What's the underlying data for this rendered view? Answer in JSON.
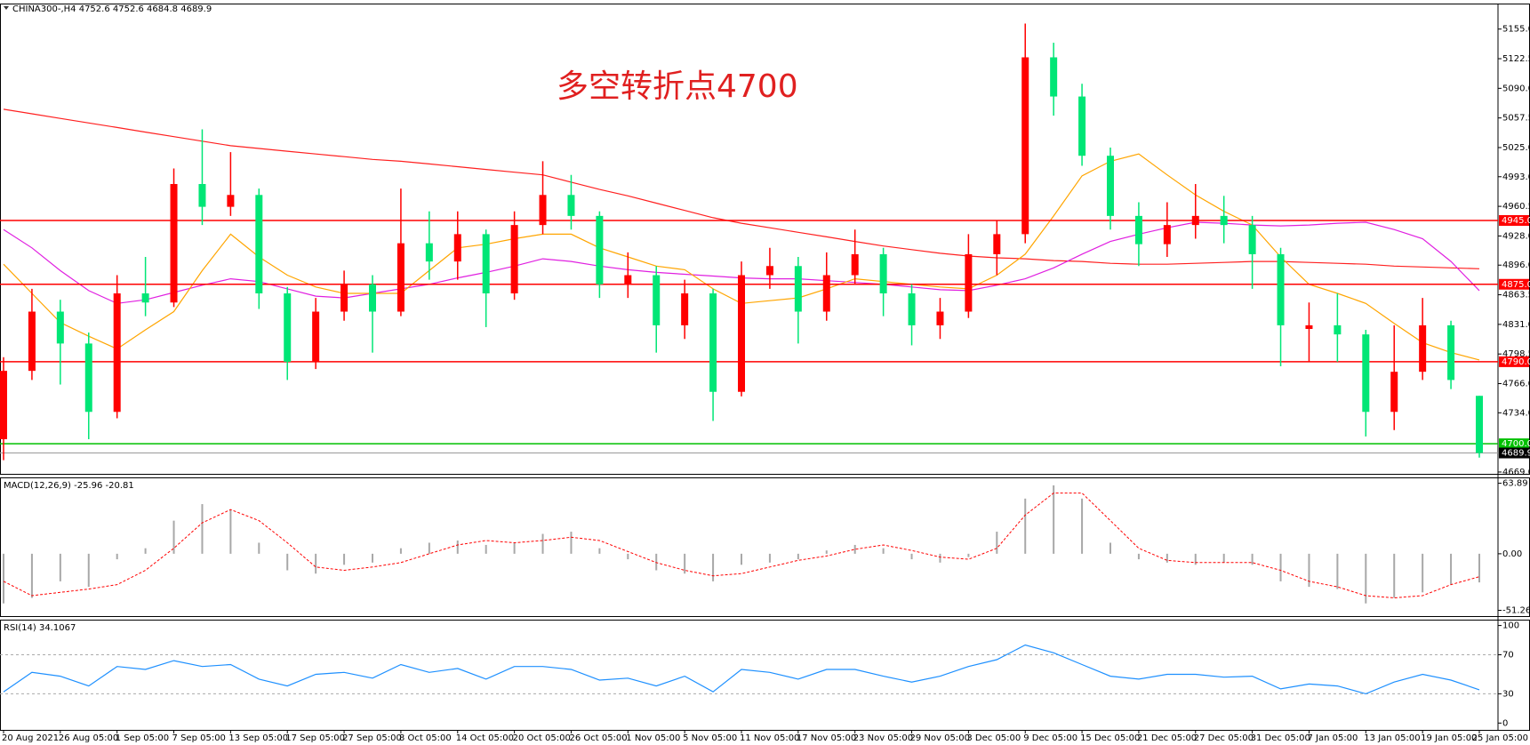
{
  "chart_data": [
    {
      "type": "candlestick",
      "title": "CHINA300-,H4  4752.6 4752.6 4684.8 4689.9",
      "annotation": "多空转折点4700",
      "categories": [
        "20 Aug 2021",
        null,
        "26 Aug 05:00",
        null,
        "1 Sep 05:00",
        null,
        "7 Sep 05:00",
        null,
        "13 Sep 05:00",
        null,
        "17 Sep 05:00",
        null,
        "27 Sep 05:00",
        null,
        "8 Oct 05:00",
        null,
        "14 Oct 05:00",
        null,
        "20 Oct 05:00",
        null,
        "26 Oct 05:00",
        null,
        "1 Nov 05:00",
        null,
        "5 Nov 05:00",
        null,
        "11 Nov 05:00",
        null,
        "17 Nov 05:00",
        null,
        "23 Nov 05:00",
        null,
        "29 Nov 05:00",
        null,
        "3 Dec 05:00",
        null,
        "9 Dec 05:00",
        null,
        "15 Dec 05:00",
        null,
        "21 Dec 05:00",
        null,
        "27 Dec 05:00",
        null,
        "31 Dec 05:00",
        null,
        "7 Jan 05:00",
        null,
        "13 Jan 05:00",
        null,
        "19 Jan 05:00",
        null,
        "25 Jan 05:00"
      ],
      "open": [
        4705,
        4780,
        4845,
        4810,
        4735,
        4865,
        4855,
        4985,
        4960,
        4973,
        4865,
        4790,
        4845,
        4875,
        4845,
        4920,
        4900,
        4930,
        4865,
        4940,
        4973,
        4950,
        4875,
        4885,
        4830,
        4865,
        4757,
        4885,
        4895,
        4845,
        4885,
        4908,
        4865,
        4830,
        4845,
        4908,
        4930,
        5124,
        5081,
        5016,
        4950,
        4919,
        4940,
        4950,
        4940,
        4908,
        4826,
        4830,
        4820,
        4735,
        4779,
        4830,
        4752.6
      ],
      "high": [
        4795,
        4870,
        4858,
        4822,
        4885,
        4905,
        5002,
        5045,
        5020,
        4980,
        4872,
        4860,
        4890,
        4885,
        4980,
        4955,
        4955,
        4935,
        4955,
        5010,
        4995,
        4955,
        4910,
        4895,
        4880,
        4870,
        4900,
        4915,
        4905,
        4910,
        4935,
        4915,
        4875,
        4860,
        4930,
        4945,
        5161,
        5140,
        5095,
        5025,
        4965,
        4965,
        4985,
        4972,
        4950,
        4915,
        4855,
        4865,
        4825,
        4830,
        4860,
        4835,
        4752.6
      ],
      "low": [
        4682,
        4770,
        4765,
        4705,
        4728,
        4840,
        4850,
        4940,
        4950,
        4848,
        4770,
        4782,
        4835,
        4800,
        4840,
        4880,
        4880,
        4828,
        4858,
        4930,
        4935,
        4860,
        4860,
        4800,
        4815,
        4725,
        4752,
        4870,
        4810,
        4835,
        4875,
        4840,
        4808,
        4815,
        4838,
        4885,
        4920,
        5060,
        5005,
        4935,
        4895,
        4905,
        4925,
        4920,
        4870,
        4785,
        4790,
        4790,
        4708,
        4715,
        4770,
        4760,
        4684.8
      ],
      "close": [
        4780,
        4845,
        4810,
        4735,
        4865,
        4855,
        4985,
        4960,
        4973,
        4865,
        4790,
        4845,
        4875,
        4845,
        4920,
        4900,
        4930,
        4865,
        4940,
        4973,
        4950,
        4875,
        4885,
        4830,
        4865,
        4757,
        4885,
        4895,
        4845,
        4885,
        4908,
        4865,
        4830,
        4845,
        4908,
        4930,
        5124,
        5081,
        5016,
        4950,
        4919,
        4940,
        4950,
        4940,
        4908,
        4830,
        4830,
        4820,
        4735,
        4779,
        4830,
        4770,
        4689.9
      ],
      "up_color": "#ff0000",
      "down_color": "#00e676",
      "lines": [
        {
          "color": "#ff2020",
          "values": [
            5067,
            5062,
            5057,
            5052,
            5047,
            5042,
            5037,
            5032,
            5027,
            5024,
            5021,
            5018,
            5015,
            5012,
            5010,
            5007,
            5004,
            5001,
            4998,
            4995,
            4987,
            4979,
            4972,
            4964,
            4956,
            4948,
            4942,
            4937,
            4932,
            4927,
            4922,
            4917,
            4913,
            4909,
            4906,
            4904,
            4903,
            4901,
            4900,
            4898,
            4897,
            4897,
            4898,
            4899,
            4900,
            4900,
            4899,
            4898,
            4897,
            4895,
            4894,
            4893,
            4892
          ]
        },
        {
          "color": "#e020e0",
          "values": [
            4935,
            4915,
            4890,
            4868,
            4854,
            4858,
            4866,
            4874,
            4881,
            4878,
            4870,
            4862,
            4860,
            4865,
            4870,
            4875,
            4882,
            4888,
            4895,
            4903,
            4900,
            4895,
            4891,
            4888,
            4886,
            4884,
            4882,
            4881,
            4881,
            4879,
            4877,
            4875,
            4872,
            4869,
            4868,
            4874,
            4881,
            4893,
            4908,
            4922,
            4930,
            4937,
            4943,
            4942,
            4940,
            4939,
            4940,
            4942,
            4943,
            4935,
            4925,
            4900,
            4868
          ]
        },
        {
          "color": "#ffa500",
          "values": [
            4897,
            4865,
            4833,
            4818,
            4804,
            4825,
            4845,
            4890,
            4930,
            4905,
            4885,
            4872,
            4865,
            4865,
            4865,
            4890,
            4915,
            4919,
            4925,
            4930,
            4930,
            4915,
            4905,
            4895,
            4891,
            4870,
            4854,
            4857,
            4860,
            4870,
            4881,
            4878,
            4875,
            4872,
            4870,
            4885,
            4908,
            4950,
            4994,
            5010,
            5018,
            4995,
            4973,
            4955,
            4940,
            4905,
            4875,
            4865,
            4854,
            4832,
            4811,
            4800,
            4792
          ]
        }
      ],
      "levels": [
        {
          "value": 4945,
          "label": "4945.0",
          "color": "#ff0000"
        },
        {
          "value": 4875,
          "label": "4875.0",
          "color": "#ff0000"
        },
        {
          "value": 4790,
          "label": "4790.0",
          "color": "#ff0000"
        },
        {
          "value": 4700,
          "label": "4700.0",
          "color": "#00c000"
        },
        {
          "value": 4689.9,
          "label": "4689.9",
          "color": "#000000"
        }
      ],
      "ylim": [
        4667,
        5183
      ],
      "yticks": [
        {
          "value": 5155,
          "label": "5155.0"
        },
        5122.5,
        {
          "value": 5090,
          "label": "5090.0"
        },
        5057.5,
        {
          "value": 5025,
          "label": "5025.0"
        },
        {
          "value": 4993,
          "label": "4993.0"
        },
        4960.5,
        {
          "value": 4928,
          "label": "4928.0"
        },
        {
          "value": 4896,
          "label": "4896.0"
        },
        4863.5,
        {
          "value": 4831,
          "label": "4831.0"
        },
        4798.5,
        {
          "value": 4766,
          "label": "4766.0"
        },
        {
          "value": 4734,
          "label": "4734.0"
        },
        {
          "value": 4669,
          "label": "4669.0"
        }
      ]
    },
    {
      "type": "macd",
      "title": "MACD(12,26,9) -25.96 -20.81",
      "histogram": [
        -45,
        -40,
        -25,
        -30,
        -5,
        5,
        30,
        45,
        40,
        10,
        -15,
        -18,
        -10,
        -8,
        5,
        10,
        12,
        8,
        10,
        18,
        20,
        5,
        -5,
        -15,
        -18,
        -25,
        -10,
        -8,
        -5,
        3,
        8,
        5,
        -5,
        -8,
        -3,
        20,
        50,
        62,
        50,
        10,
        -5,
        -8,
        -10,
        -8,
        -10,
        -25,
        -30,
        -32,
        -45,
        -40,
        -35,
        -28,
        -25.96
      ],
      "signal": [
        -25,
        -38,
        -35,
        -32,
        -28,
        -15,
        5,
        28,
        40,
        30,
        10,
        -12,
        -15,
        -12,
        -8,
        0,
        8,
        12,
        10,
        12,
        15,
        12,
        2,
        -8,
        -15,
        -20,
        -18,
        -12,
        -6,
        -2,
        4,
        8,
        3,
        -3,
        -5,
        5,
        35,
        55,
        55,
        30,
        5,
        -6,
        -8,
        -8,
        -8,
        -15,
        -25,
        -30,
        -38,
        -40,
        -38,
        -28,
        -20.81
      ],
      "hist_color": "#a8a8a8",
      "signal_color": "#ff0000",
      "ylim": [
        -56.5,
        69.2
      ],
      "yticks": [
        63.89,
        {
          "value": 0,
          "label": "0.00"
        },
        -51.26
      ]
    },
    {
      "type": "line",
      "title": "RSI(14) 34.1067",
      "values": [
        32,
        52,
        48,
        38,
        58,
        55,
        64,
        58,
        60,
        45,
        38,
        50,
        52,
        46,
        60,
        52,
        56,
        45,
        58,
        58,
        55,
        44,
        46,
        38,
        48,
        32,
        55,
        52,
        45,
        55,
        55,
        48,
        42,
        48,
        58,
        65,
        80,
        72,
        60,
        48,
        45,
        50,
        50,
        47,
        48,
        35,
        40,
        38,
        30,
        42,
        50,
        44,
        34.1067
      ],
      "color": "#1e90ff",
      "levels": [
        70,
        30
      ],
      "ylim": [
        -7,
        106
      ],
      "yticks": [
        100,
        70,
        30,
        0
      ]
    }
  ]
}
